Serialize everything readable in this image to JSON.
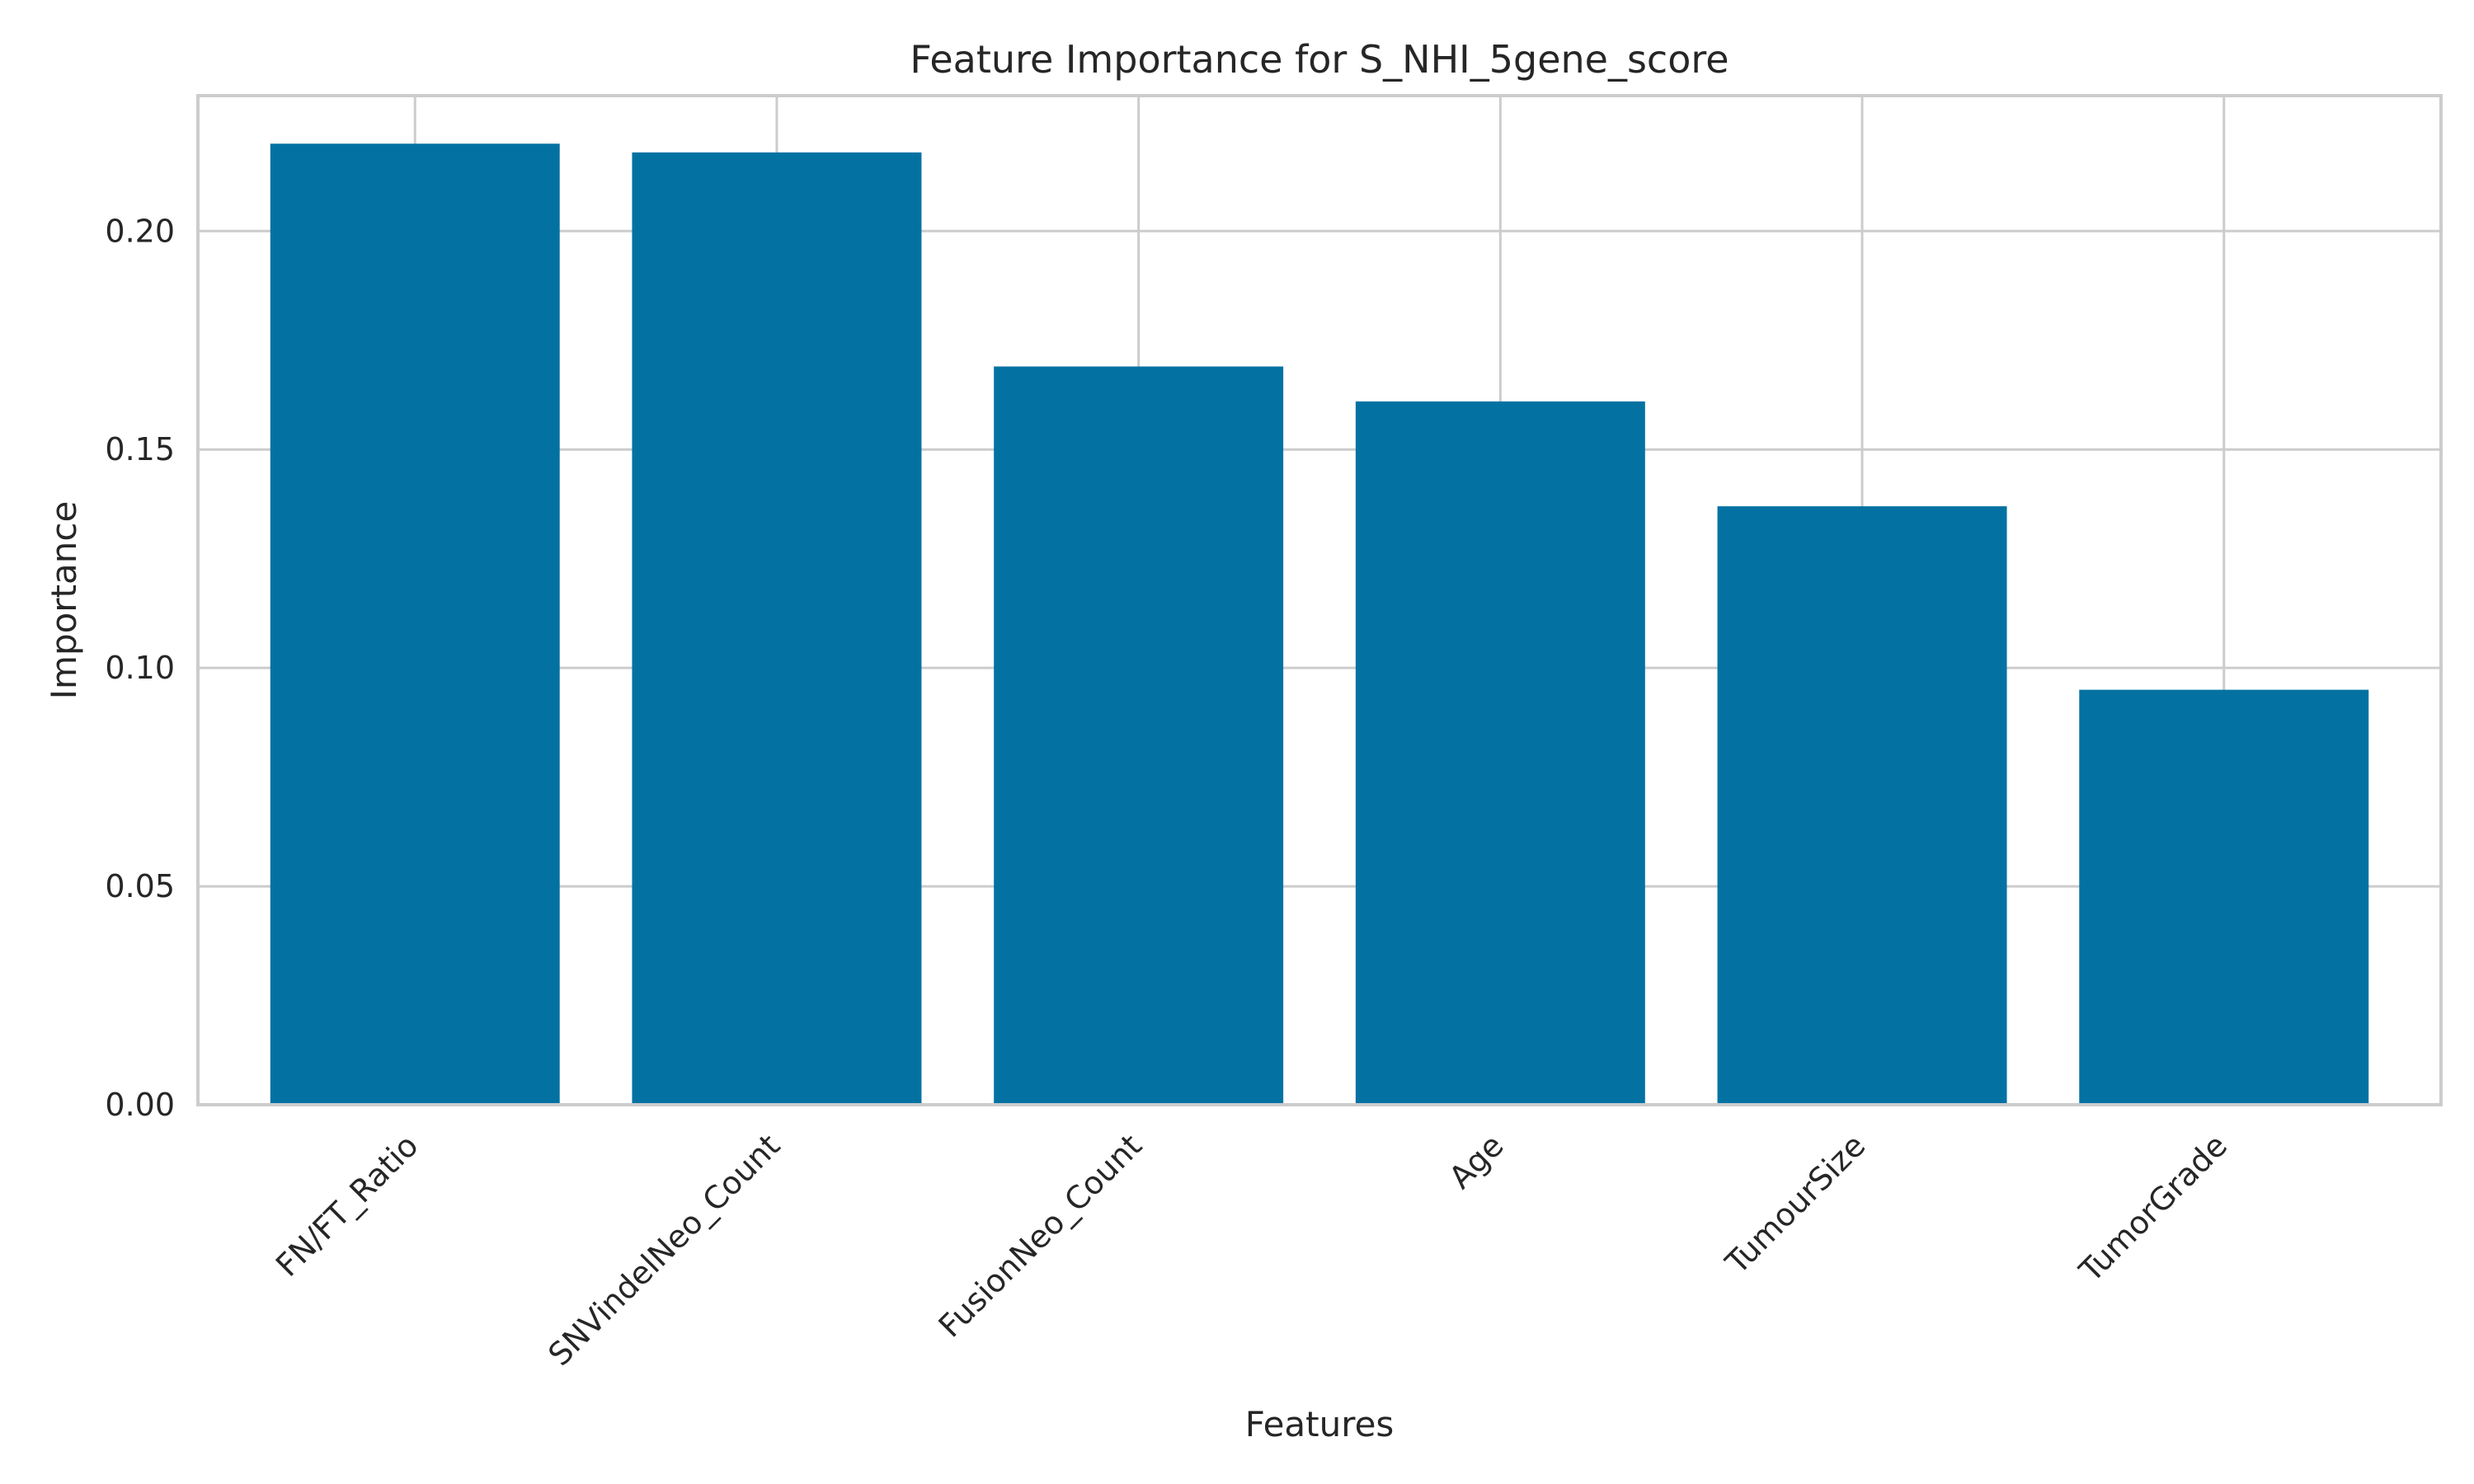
{
  "chart_data": {
    "type": "bar",
    "title": "Feature Importance for S_NHI_5gene_score",
    "xlabel": "Features",
    "ylabel": "Importance",
    "categories": [
      "FN/FT_Ratio",
      "SNVindelNeo_Count",
      "FusionNeo_Count",
      "Age",
      "TumourSize",
      "TumorGrade"
    ],
    "values": [
      0.22,
      0.218,
      0.169,
      0.161,
      0.137,
      0.095
    ],
    "ylim": [
      0,
      0.231
    ],
    "yticks": [
      0.0,
      0.05,
      0.1,
      0.15,
      0.2
    ],
    "ytick_labels": [
      "0.00",
      "0.05",
      "0.10",
      "0.15",
      "0.20"
    ],
    "grid": true,
    "bar_color": "#0372a3",
    "grid_color": "#cccccc",
    "text_color": "#262626"
  }
}
